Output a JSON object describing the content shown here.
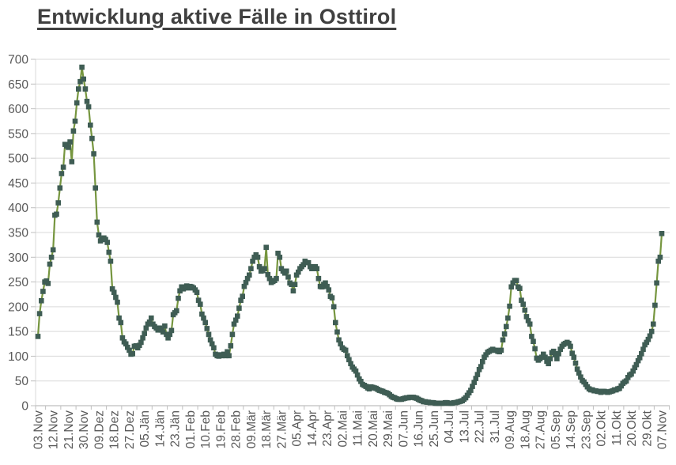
{
  "title": "Entwicklung aktive Fälle in Osttirol",
  "chart_data": {
    "type": "line",
    "series_name": "aktive Fälle",
    "xlabel": "",
    "ylabel": "",
    "ylim": [
      0,
      700
    ],
    "ytick_step": 50,
    "grid": true,
    "legend_position": "none",
    "marker_shape": "square",
    "x_tick_label_interval": 9,
    "x_tick_labels": [
      "03.Nov",
      "12.Nov",
      "21.Nov",
      "30.Nov",
      "09.Dez",
      "18.Dez",
      "27.Dez",
      "05.Jän",
      "14.Jän",
      "23.Jän",
      "01.Feb",
      "10.Feb",
      "19.Feb",
      "28.Feb",
      "09.Mär",
      "18.Mär",
      "27.Mär",
      "05.Apr",
      "14.Apr",
      "23.Apr",
      "02.Mai",
      "11.Mai",
      "20.Mai",
      "29.Mai",
      "07.Jun",
      "16.Jun",
      "25.Jun",
      "04.Jul",
      "13.Jul",
      "22.Jul",
      "31.Jul",
      "09.Aug",
      "18.Aug",
      "27.Aug",
      "05.Sep",
      "14.Sep",
      "23.Sep",
      "02.Okt",
      "11.Okt",
      "20.Okt",
      "29.Okt",
      "07.Nov"
    ],
    "values": [
      140,
      186,
      212,
      231,
      250,
      252,
      247,
      286,
      300,
      315,
      385,
      387,
      410,
      440,
      469,
      482,
      528,
      525,
      522,
      533,
      493,
      555,
      575,
      612,
      640,
      655,
      684,
      660,
      640,
      615,
      604,
      567,
      540,
      509,
      440,
      371,
      345,
      333,
      336,
      339,
      336,
      330,
      310,
      292,
      236,
      229,
      219,
      209,
      177,
      168,
      137,
      129,
      125,
      118,
      112,
      104,
      105,
      120,
      121,
      117,
      122,
      128,
      137,
      146,
      157,
      165,
      169,
      177,
      165,
      160,
      157,
      153,
      157,
      153,
      149,
      161,
      144,
      137,
      144,
      152,
      184,
      188,
      192,
      217,
      232,
      240,
      236,
      240,
      242,
      238,
      241,
      240,
      238,
      234,
      229,
      213,
      205,
      185,
      177,
      168,
      156,
      144,
      133,
      125,
      117,
      104,
      101,
      100,
      103,
      101,
      104,
      101,
      109,
      101,
      121,
      144,
      165,
      173,
      181,
      197,
      213,
      221,
      241,
      249,
      257,
      264,
      277,
      292,
      300,
      305,
      300,
      281,
      272,
      273,
      277,
      320,
      265,
      257,
      249,
      251,
      253,
      257,
      308,
      300,
      277,
      272,
      268,
      272,
      260,
      248,
      245,
      232,
      245,
      264,
      270,
      277,
      281,
      285,
      292,
      289,
      289,
      281,
      277,
      279,
      281,
      277,
      257,
      241,
      240,
      245,
      248,
      241,
      234,
      221,
      218,
      200,
      168,
      149,
      133,
      125,
      117,
      114,
      112,
      101,
      93,
      85,
      78,
      74,
      70,
      62,
      54,
      49,
      43,
      41,
      39,
      36,
      34,
      38,
      37,
      36,
      35,
      33,
      31,
      30,
      29,
      27,
      26,
      25,
      22,
      19,
      17,
      16,
      14,
      13,
      13,
      13,
      14,
      15,
      16,
      16,
      17,
      17,
      17,
      16,
      15,
      13,
      11,
      10,
      8,
      8,
      7,
      7,
      6,
      6,
      6,
      5,
      5,
      5,
      5,
      5,
      5,
      6,
      6,
      5,
      5,
      5,
      6,
      6,
      7,
      8,
      9,
      10,
      13,
      16,
      21,
      26,
      31,
      39,
      47,
      55,
      63,
      73,
      79,
      89,
      98,
      103,
      108,
      110,
      112,
      114,
      112,
      112,
      110,
      109,
      112,
      133,
      145,
      160,
      177,
      201,
      240,
      248,
      253,
      253,
      240,
      237,
      213,
      205,
      193,
      180,
      172,
      165,
      140,
      130,
      115,
      96,
      92,
      95,
      98,
      104,
      98,
      90,
      85,
      95,
      107,
      110,
      103,
      95,
      105,
      114,
      120,
      124,
      126,
      128,
      126,
      120,
      106,
      98,
      86,
      74,
      66,
      58,
      51,
      48,
      43,
      38,
      34,
      32,
      32,
      30,
      30,
      29,
      29,
      27,
      29,
      29,
      28,
      27,
      28,
      29,
      30,
      32,
      32,
      34,
      35,
      40,
      45,
      48,
      50,
      57,
      62,
      64,
      70,
      77,
      83,
      91,
      97,
      105,
      114,
      123,
      128,
      134,
      141,
      150,
      165,
      203,
      248,
      292,
      300,
      348
    ],
    "colors": {
      "line": "#76963F",
      "marker": "#3F5D54",
      "grid": "#D9D9D9",
      "axis": "#BFBFBF",
      "label": "#595959",
      "title": "#404040"
    }
  }
}
